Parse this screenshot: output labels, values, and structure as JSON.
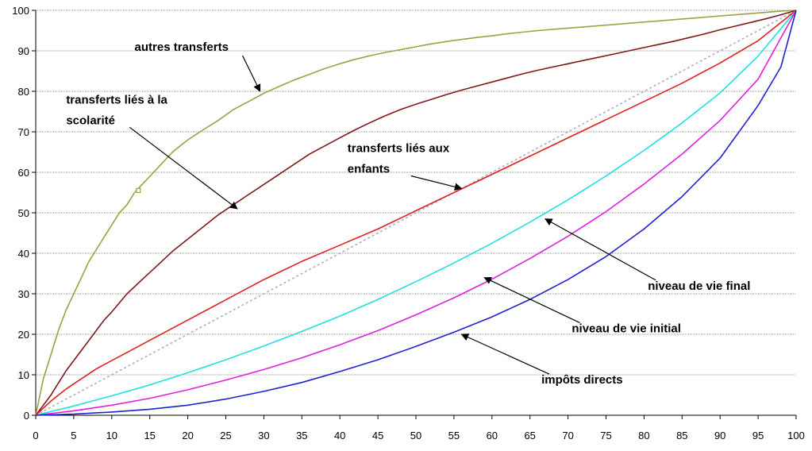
{
  "chart_data": {
    "type": "line",
    "title": "",
    "xlabel": "",
    "ylabel": "",
    "xlim": [
      0,
      100
    ],
    "ylim": [
      0,
      100
    ],
    "xticks": [
      0,
      5,
      10,
      15,
      20,
      25,
      30,
      35,
      40,
      45,
      50,
      55,
      60,
      65,
      70,
      75,
      80,
      85,
      90,
      95,
      100
    ],
    "yticks": [
      0,
      10,
      20,
      30,
      40,
      50,
      60,
      70,
      80,
      90,
      100
    ],
    "grid": "horizontal",
    "legend": "none",
    "diagonal": {
      "x": [
        0,
        100
      ],
      "y": [
        0,
        100
      ],
      "color": "#b0b0b8",
      "style": "dotted"
    },
    "series": [
      {
        "name": "autres transferts",
        "color": "#a0a040",
        "x": [
          0,
          1,
          2,
          3,
          4,
          5,
          6,
          7,
          8,
          9,
          10,
          11,
          12,
          13,
          14,
          15,
          16,
          17,
          18,
          19,
          20,
          22,
          24,
          26,
          28,
          30,
          32,
          34,
          36,
          38,
          40,
          42,
          44,
          46,
          48,
          50,
          52,
          54,
          56,
          58,
          60,
          62,
          64,
          66,
          68,
          70,
          72,
          74,
          76,
          78,
          80,
          82,
          84,
          86,
          88,
          90,
          92,
          94,
          96,
          98,
          100
        ],
        "y": [
          0,
          9,
          15,
          21,
          26,
          30,
          34,
          38,
          41,
          44,
          47,
          50,
          52,
          55,
          57,
          59,
          61,
          63,
          65,
          66.5,
          68,
          70.5,
          72.8,
          75.5,
          77.5,
          79.5,
          81.2,
          82.8,
          84.2,
          85.6,
          86.8,
          87.9,
          88.8,
          89.6,
          90.3,
          91,
          91.7,
          92.3,
          92.8,
          93.3,
          93.7,
          94.2,
          94.6,
          95,
          95.3,
          95.6,
          95.9,
          96.2,
          96.5,
          96.8,
          97.1,
          97.4,
          97.7,
          98,
          98.3,
          98.6,
          98.9,
          99.2,
          99.5,
          99.8,
          100
        ]
      },
      {
        "name": "transferts liés à la scolarité",
        "color": "#801818",
        "x": [
          0,
          1,
          2,
          3,
          4,
          5,
          6,
          7,
          8,
          9,
          10,
          12,
          14,
          16,
          18,
          20,
          22,
          24,
          26,
          28,
          30,
          32,
          34,
          36,
          38,
          40,
          42,
          44,
          46,
          48,
          50,
          52,
          54,
          56,
          58,
          60,
          62,
          64,
          66,
          68,
          70,
          72,
          74,
          76,
          78,
          80,
          82,
          84,
          86,
          88,
          90,
          92,
          94,
          96,
          98,
          100
        ],
        "y": [
          0,
          2.5,
          5,
          8,
          11,
          13.5,
          16,
          18.5,
          21,
          23.5,
          25.5,
          30,
          33.5,
          37,
          40.5,
          43.5,
          46.5,
          49.5,
          52,
          54.5,
          57,
          59.5,
          62,
          64.5,
          66.5,
          68.5,
          70.5,
          72.3,
          74,
          75.5,
          76.8,
          78,
          79.2,
          80.3,
          81.3,
          82.3,
          83.3,
          84.3,
          85.2,
          86,
          86.8,
          87.6,
          88.4,
          89.2,
          90,
          90.8,
          91.6,
          92.4,
          93.3,
          94.2,
          95.2,
          96.1,
          97,
          97.9,
          98.9,
          100
        ]
      },
      {
        "name": "transferts liés aux enfants",
        "color": "#e02020",
        "x": [
          0,
          2,
          4,
          6,
          8,
          10,
          12,
          15,
          20,
          25,
          30,
          35,
          40,
          45,
          50,
          55,
          60,
          65,
          70,
          75,
          80,
          85,
          90,
          95,
          100
        ],
        "y": [
          0,
          3.5,
          6.5,
          9,
          11.5,
          13.5,
          15.5,
          18.5,
          23.5,
          28.5,
          33.5,
          38,
          42,
          46,
          50.5,
          55,
          59.5,
          64,
          68.5,
          73,
          77.5,
          82,
          87,
          92.5,
          100
        ]
      },
      {
        "name": "niveau de vie final",
        "color": "#20e0e0",
        "x": [
          0,
          5,
          10,
          15,
          20,
          25,
          30,
          35,
          40,
          45,
          50,
          55,
          60,
          65,
          70,
          75,
          80,
          85,
          90,
          95,
          100
        ],
        "y": [
          0,
          2.3,
          4.8,
          7.5,
          10.5,
          13.7,
          17.1,
          20.7,
          24.5,
          28.6,
          33,
          37.6,
          42.5,
          47.7,
          53.2,
          59.1,
          65.4,
          72.2,
          79.6,
          88.7,
          100
        ]
      },
      {
        "name": "niveau de vie initial",
        "color": "#e020e0",
        "x": [
          0,
          5,
          10,
          15,
          20,
          25,
          30,
          35,
          40,
          45,
          50,
          55,
          60,
          65,
          70,
          75,
          80,
          85,
          90,
          95,
          100
        ],
        "y": [
          0,
          1.1,
          2.5,
          4.2,
          6.3,
          8.7,
          11.3,
          14.2,
          17.4,
          20.9,
          24.8,
          29,
          33.6,
          38.7,
          44.2,
          50.3,
          57.1,
          64.5,
          72.8,
          83,
          100
        ]
      },
      {
        "name": "impôts directs",
        "color": "#2020d0",
        "x": [
          0,
          5,
          10,
          15,
          20,
          25,
          30,
          35,
          40,
          45,
          50,
          55,
          60,
          65,
          70,
          75,
          80,
          85,
          90,
          95,
          98,
          100
        ],
        "y": [
          0,
          0.3,
          0.8,
          1.5,
          2.5,
          4,
          5.9,
          8.1,
          10.8,
          13.7,
          17,
          20.5,
          24.3,
          28.6,
          33.5,
          39.2,
          46,
          54,
          63.5,
          76.5,
          86,
          100
        ]
      }
    ],
    "annotations": [
      {
        "lines": [
          "autres transferts"
        ],
        "x": 13,
        "y": 90,
        "arrow_to": [
          29.5,
          80
        ]
      },
      {
        "lines": [
          "transferts liés à la",
          "scolarité"
        ],
        "x": 4,
        "y": 77,
        "arrow_to": [
          26.5,
          51
        ]
      },
      {
        "lines": [
          "transferts liés aux",
          "enfants"
        ],
        "x": 41,
        "y": 65,
        "arrow_to": [
          56,
          56
        ]
      },
      {
        "lines": [
          "niveau de vie final"
        ],
        "x": 80.5,
        "y": 31,
        "arrow_to": [
          67,
          48.5
        ]
      },
      {
        "lines": [
          "niveau de vie initial"
        ],
        "x": 70.5,
        "y": 20.5,
        "arrow_to": [
          59,
          34
        ]
      },
      {
        "lines": [
          "impôts directs"
        ],
        "x": 66.5,
        "y": 7.8,
        "arrow_to": [
          56,
          20
        ]
      }
    ],
    "markers": [
      {
        "series": "autres transferts",
        "x": 13.5,
        "y": 55.5,
        "shape": "square"
      }
    ]
  }
}
